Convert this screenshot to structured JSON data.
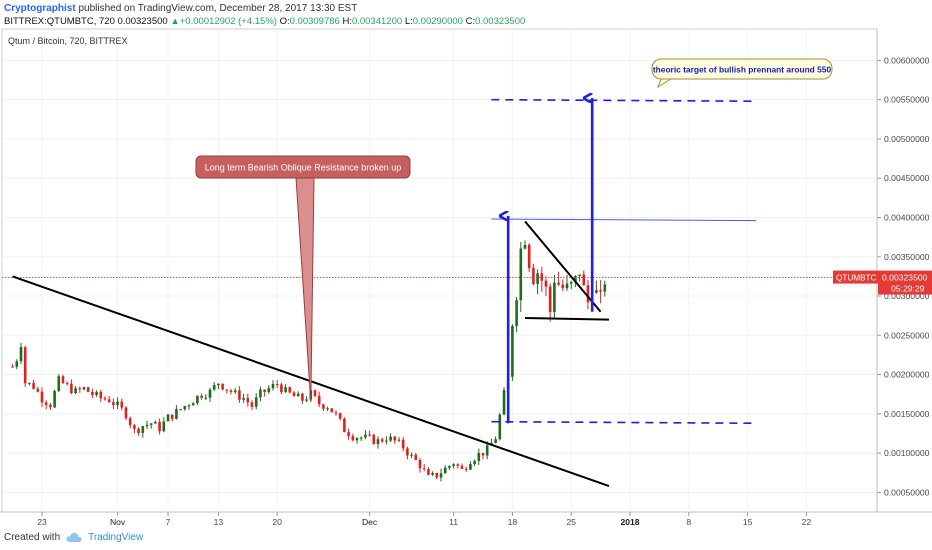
{
  "header": {
    "author": "Cryptographist",
    "published": "published on TradingView.com, December 28, 2017 13:30 EST",
    "symbol": "BITTREX:QTUMBTC, 720",
    "last": "0.00323500",
    "change_arrow": "▲",
    "change": "+0.00012902 (+4.15%)",
    "o_label": "O:",
    "o": "0.00309786",
    "h_label": "H:",
    "h": "0.00341200",
    "l_label": "L:",
    "l": "0.00290000",
    "c_label": "C:",
    "c": "0.00323500"
  },
  "footer": {
    "created": "Created with",
    "brand": "TradingView",
    "logo_icon": "tradingview-cloud-icon"
  },
  "chart_data": {
    "type": "candlestick",
    "title": "Qtum / Bitcoin, 720, BITTREX",
    "ylim": [
      0.00025,
      0.0064
    ],
    "yticks": [
      "0.00050000",
      "0.00100000",
      "0.00150000",
      "0.00200000",
      "0.00250000",
      "0.00300000",
      "0.00350000",
      "0.00400000",
      "0.00450000",
      "0.00500000",
      "0.00550000",
      "0.00600000"
    ],
    "ytick_values": [
      0.0005,
      0.001,
      0.0015,
      0.002,
      0.0025,
      0.003,
      0.0035,
      0.004,
      0.0045,
      0.005,
      0.0055,
      0.006
    ],
    "xticks": [
      {
        "label": "23",
        "day": 0
      },
      {
        "label": "Nov",
        "day": 9
      },
      {
        "label": "7",
        "day": 15
      },
      {
        "label": "13",
        "day": 21
      },
      {
        "label": "20",
        "day": 28
      },
      {
        "label": "Dec",
        "day": 39
      },
      {
        "label": "11",
        "day": 49
      },
      {
        "label": "18",
        "day": 56
      },
      {
        "label": "25",
        "day": 63
      },
      {
        "label": "2018",
        "day": 70
      },
      {
        "label": "8",
        "day": 77
      },
      {
        "label": "15",
        "day": 84
      },
      {
        "label": "22",
        "day": 91
      }
    ],
    "x_domain_days": [
      -3.5,
      97
    ],
    "price_line": 0.003235,
    "price_label": "QTUMBTC",
    "price_value": "0.00323500",
    "countdown": "05:29:29",
    "colors": {
      "up": "#1e6b1e",
      "down": "#e02020",
      "blue": "#1f1fe6",
      "price": "#e53935"
    },
    "close_anchors": [
      [
        -3.5,
        0.0021
      ],
      [
        -3,
        0.0022
      ],
      [
        -2.5,
        0.0024
      ],
      [
        -2,
        0.0019
      ],
      [
        -1,
        0.00185
      ],
      [
        0,
        0.0017
      ],
      [
        1,
        0.00162
      ],
      [
        2,
        0.00192
      ],
      [
        3,
        0.00185
      ],
      [
        4,
        0.00178
      ],
      [
        5,
        0.00182
      ],
      [
        6,
        0.00175
      ],
      [
        7,
        0.0017
      ],
      [
        8,
        0.00168
      ],
      [
        9,
        0.0016
      ],
      [
        10,
        0.0015
      ],
      [
        11,
        0.00128
      ],
      [
        12,
        0.00135
      ],
      [
        13,
        0.00138
      ],
      [
        14,
        0.00132
      ],
      [
        15,
        0.00145
      ],
      [
        16,
        0.00152
      ],
      [
        17,
        0.0016
      ],
      [
        18,
        0.00168
      ],
      [
        19,
        0.00175
      ],
      [
        20,
        0.00178
      ],
      [
        21,
        0.0019
      ],
      [
        22,
        0.00182
      ],
      [
        23,
        0.00175
      ],
      [
        24,
        0.0017
      ],
      [
        25,
        0.0016
      ],
      [
        26,
        0.00175
      ],
      [
        27,
        0.00182
      ],
      [
        28,
        0.00188
      ],
      [
        29,
        0.00178
      ],
      [
        30,
        0.00172
      ],
      [
        31,
        0.00168
      ],
      [
        32,
        0.00175
      ],
      [
        33,
        0.00163
      ],
      [
        34,
        0.0016
      ],
      [
        35,
        0.00148
      ],
      [
        36,
        0.0013
      ],
      [
        37,
        0.00122
      ],
      [
        38,
        0.0012
      ],
      [
        39,
        0.00118
      ],
      [
        40,
        0.00115
      ],
      [
        41,
        0.0012
      ],
      [
        42,
        0.00115
      ],
      [
        43,
        0.00108
      ],
      [
        44,
        0.00095
      ],
      [
        45,
        0.00085
      ],
      [
        46,
        0.00068
      ],
      [
        47,
        0.00072
      ],
      [
        48,
        0.0008
      ],
      [
        49,
        0.00088
      ],
      [
        50,
        0.00078
      ],
      [
        51,
        0.00092
      ],
      [
        52,
        0.00098
      ],
      [
        53,
        0.00104
      ],
      [
        54,
        0.0012
      ],
      [
        55,
        0.00175
      ],
      [
        55.5,
        0.00195
      ],
      [
        56,
        0.00265
      ],
      [
        56.5,
        0.003
      ],
      [
        57,
        0.0036
      ],
      [
        57.5,
        0.0037
      ],
      [
        58,
        0.0034
      ],
      [
        58.5,
        0.0032
      ],
      [
        59,
        0.0033
      ],
      [
        60,
        0.0031
      ],
      [
        60.5,
        0.0028
      ],
      [
        61,
        0.0032
      ],
      [
        62,
        0.0031
      ],
      [
        63,
        0.00315
      ],
      [
        64,
        0.0033
      ],
      [
        65,
        0.00292
      ],
      [
        65.5,
        0.0031
      ],
      [
        66,
        0.00305
      ],
      [
        66.5,
        0.003
      ],
      [
        67,
        0.00318
      ]
    ],
    "annotations": [
      {
        "text": "Long term Bearish Oblique Resistance broken up",
        "style": "callout-red"
      },
      {
        "text": "theoric target of bullish prennant around 550",
        "style": "callout-yellow"
      }
    ],
    "lines": {
      "resistance": {
        "from": [
          -3.5,
          0.00325
        ],
        "to": [
          67.5,
          0.00058
        ]
      },
      "flag_top": {
        "from": [
          57.5,
          0.00395
        ],
        "to": [
          66.5,
          0.0028
        ]
      },
      "flag_bottom": {
        "from": [
          57.5,
          0.00272
        ],
        "to": [
          67.5,
          0.0027
        ]
      },
      "breakout_level": {
        "from": [
          53.5,
          0.00398
        ],
        "to": [
          85,
          0.00396
        ]
      },
      "target_dash": {
        "from": [
          53.5,
          0.0055
        ],
        "to": [
          85,
          0.00548
        ]
      },
      "base_dash": {
        "from": [
          53.5,
          0.0014
        ],
        "to": [
          85,
          0.00138
        ]
      },
      "arrow1": {
        "from": [
          55.5,
          0.00138
        ],
        "to": [
          55.5,
          0.00402
        ]
      },
      "arrow2": {
        "from": [
          65.5,
          0.0028
        ],
        "to": [
          65.5,
          0.00552
        ]
      }
    }
  }
}
